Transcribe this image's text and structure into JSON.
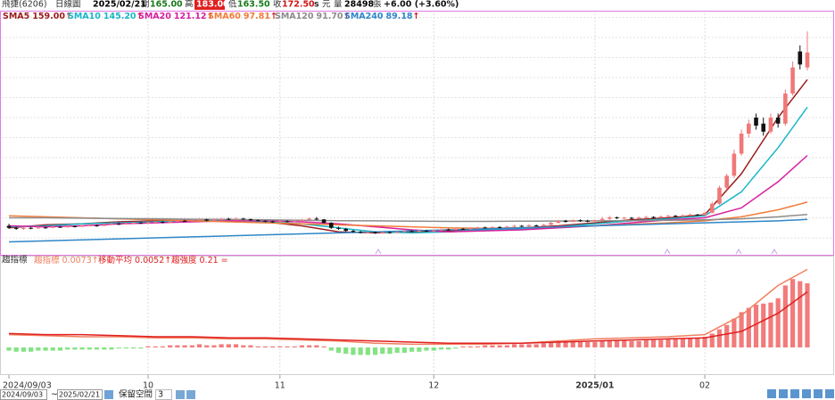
{
  "header": {
    "stock": "飛捷(6206)",
    "view": "日線圖",
    "date": "2025/02/21",
    "open_label": "開",
    "open": "165.00",
    "high_label": "高",
    "high": "183.00",
    "low_label": "低",
    "low": "163.50",
    "close_label": "收",
    "close": "172.50",
    "unit_s": "s",
    "unit_yuan": "元",
    "volume_label": "量",
    "volume": "28498",
    "volume_unit": "張",
    "change": "+6.00 (+3.60%)"
  },
  "toolbar": {
    "range_start": "2024/09/03",
    "range_sep": "~",
    "range_end": "2025/02/21",
    "reserve_label": "保留空間",
    "reserve_value": "3"
  },
  "chart_data": [
    {
      "type": "candlestick",
      "xlim": [
        0,
        109
      ],
      "ylim": [
        72,
        192
      ],
      "xticks": [
        {
          "value": 0,
          "label": "2024/09/03"
        },
        {
          "value": 19,
          "label": "10"
        },
        {
          "value": 37,
          "label": "11"
        },
        {
          "value": 58,
          "label": "12"
        },
        {
          "value": 80,
          "label": "2025/01"
        },
        {
          "value": 95,
          "label": "02"
        }
      ],
      "grid_y": [
        80,
        90,
        100,
        110,
        120,
        130,
        140,
        150,
        160,
        170,
        180,
        190
      ],
      "up_color": "#f07878",
      "down_color": "#111111",
      "open": [
        86,
        85,
        84.5,
        85,
        84.8,
        85.2,
        85,
        85.5,
        85.3,
        85.8,
        85.6,
        86,
        86.2,
        86,
        86.5,
        87,
        86.8,
        87.2,
        87.5,
        87.3,
        87.8,
        88,
        87.6,
        88.2,
        88.5,
        88.3,
        88.8,
        89.2,
        88.6,
        89,
        89.5,
        89.2,
        89.6,
        89.3,
        88.8,
        88.5,
        88.2,
        88,
        88.3,
        88.1,
        88.6,
        89,
        89.6,
        89.2,
        87.5,
        85,
        84.5,
        83.5,
        83,
        82.6,
        82.9,
        82.4,
        82.8,
        82.5,
        83,
        83.4,
        83.1,
        83.6,
        83.3,
        83.8,
        84.2,
        84,
        84.5,
        84.3,
        84.8,
        85.2,
        85,
        85.4,
        85.1,
        85.6,
        86,
        85.8,
        86.2,
        86,
        86.5,
        87.5,
        88.5,
        88,
        88.8,
        88.5,
        88.2,
        88.8,
        89.5,
        90.2,
        89.8,
        90,
        89.6,
        90.1,
        90.4,
        90.1,
        90.6,
        91,
        90.7,
        91.2,
        91.6,
        91.3,
        92.5,
        97,
        105,
        111,
        122,
        132,
        140,
        137,
        133,
        140,
        137,
        152,
        173,
        165
      ],
      "close": [
        85,
        84.5,
        85,
        84.8,
        85.2,
        85,
        85.5,
        85.3,
        85.8,
        85.6,
        86,
        86.2,
        86,
        86.5,
        87,
        86.8,
        87.2,
        87.5,
        87.3,
        87.8,
        88,
        87.6,
        88.2,
        88.5,
        88.3,
        88.8,
        89.2,
        88.6,
        89,
        89.5,
        89.2,
        89.6,
        89.3,
        88.8,
        88.5,
        88.2,
        88,
        88.3,
        88.1,
        88.6,
        89,
        89.6,
        89.2,
        87.5,
        85,
        84.5,
        83.5,
        83,
        82.6,
        82.9,
        82.4,
        82.8,
        82.5,
        83,
        83.4,
        83.1,
        83.6,
        83.3,
        83.8,
        84.2,
        84,
        84.5,
        84.3,
        84.8,
        85.2,
        85,
        85.4,
        85.1,
        85.6,
        86,
        85.8,
        86.2,
        86,
        86.5,
        87.5,
        88.5,
        88,
        88.8,
        88.5,
        88.2,
        88.8,
        89.5,
        90.2,
        89.8,
        90,
        89.6,
        90.1,
        90.4,
        90.1,
        90.6,
        91,
        90.7,
        91.2,
        91.6,
        91.3,
        92.5,
        97,
        105,
        111,
        122,
        132,
        137,
        136,
        133,
        140,
        137,
        152,
        165,
        166.5,
        172.5
      ],
      "high": [
        87,
        85.5,
        85.5,
        85.5,
        85.8,
        85.6,
        86,
        86,
        86.2,
        86.2,
        86.5,
        86.8,
        86.6,
        87,
        87.5,
        87.6,
        87.6,
        88,
        88,
        88.2,
        88.5,
        88.3,
        88.6,
        89,
        89,
        89.2,
        89.8,
        89.5,
        89.4,
        90,
        90,
        90.2,
        90,
        89.6,
        89.2,
        88.8,
        88.6,
        88.8,
        88.8,
        89,
        89.5,
        90.2,
        90.4,
        89.4,
        87.8,
        85.6,
        85,
        84,
        83.5,
        83.3,
        83.2,
        83.2,
        83.2,
        83.4,
        83.8,
        83.8,
        84,
        84,
        84.2,
        84.6,
        84.6,
        85,
        84.9,
        85.2,
        85.6,
        85.6,
        85.8,
        85.8,
        86,
        86.5,
        86.4,
        86.8,
        86.6,
        87,
        88,
        89,
        89,
        89.2,
        89.2,
        89,
        89.2,
        90.5,
        91,
        90.6,
        90.5,
        90.4,
        90.6,
        91,
        90.8,
        91.2,
        91.5,
        91.4,
        91.8,
        92.2,
        92,
        93,
        98,
        106,
        112,
        124,
        134,
        139,
        142,
        140,
        142,
        142,
        154,
        168,
        176,
        183
      ],
      "low": [
        84.5,
        84,
        84,
        84.3,
        84.5,
        84.6,
        84.8,
        85,
        85,
        85.2,
        85.4,
        85.8,
        85.6,
        85.8,
        86.2,
        86.4,
        86.5,
        87,
        87,
        87,
        87.5,
        87.2,
        87.3,
        88,
        88,
        88,
        88.5,
        88.2,
        88.3,
        88.8,
        88.9,
        89,
        89,
        88.5,
        88.2,
        87.8,
        87.6,
        87.7,
        87.8,
        87.9,
        88.3,
        88.8,
        88.9,
        87.2,
        84.5,
        84,
        83,
        82.5,
        82.2,
        82.2,
        82,
        82,
        82.1,
        82.2,
        82.6,
        82.8,
        82.8,
        83,
        83,
        83.5,
        83.6,
        83.8,
        84,
        84,
        84.5,
        84.7,
        84.8,
        84.8,
        84.9,
        85.3,
        85.4,
        85.5,
        85.7,
        85.8,
        86.3,
        87.2,
        87.6,
        87.8,
        88,
        87.8,
        88,
        88.5,
        89,
        89.4,
        89.4,
        89.2,
        89.3,
        89.8,
        89.7,
        89.9,
        90.2,
        90.3,
        90.4,
        90.9,
        91,
        91,
        92.2,
        96.5,
        104,
        110,
        121,
        130,
        134,
        131,
        132,
        135,
        136,
        151,
        164,
        163.5
      ],
      "series": [
        {
          "name": "SMA5",
          "color": "#9b1c1c",
          "x": [
            0,
            5,
            10,
            15,
            20,
            25,
            30,
            35,
            40,
            45,
            50,
            55,
            60,
            65,
            70,
            75,
            80,
            85,
            90,
            95,
            100,
            105,
            109
          ],
          "values": [
            85,
            86.5,
            87,
            88,
            88.5,
            88.7,
            88.2,
            88,
            86,
            83,
            82.5,
            83,
            83.5,
            84.5,
            85,
            86,
            87.5,
            89,
            90,
            91.5,
            112,
            140,
            159
          ],
          "last": {
            "value": 159,
            "label": "159.00"
          },
          "trend": "↑"
        },
        {
          "name": "SMA10",
          "color": "#19b6c9",
          "x": [
            0,
            5,
            10,
            15,
            20,
            25,
            30,
            35,
            40,
            45,
            50,
            55,
            60,
            65,
            70,
            75,
            80,
            85,
            90,
            95,
            100,
            105,
            109
          ],
          "values": [
            85.5,
            86,
            87,
            87.5,
            88,
            88.5,
            88.5,
            88,
            87,
            85,
            83,
            82.5,
            83,
            84,
            84.5,
            85.5,
            87,
            88.5,
            89.5,
            91,
            103,
            125,
            145.2
          ],
          "last": {
            "value": 145.2,
            "label": "145.20"
          },
          "trend": "↑"
        },
        {
          "name": "SMA20",
          "color": "#d6209e",
          "x": [
            0,
            5,
            10,
            15,
            20,
            25,
            30,
            35,
            40,
            45,
            50,
            55,
            60,
            65,
            70,
            75,
            80,
            85,
            90,
            95,
            100,
            105,
            109
          ],
          "values": [
            86,
            85.5,
            86,
            87,
            87.5,
            88,
            88.5,
            88.5,
            88,
            87,
            85.5,
            84,
            83,
            83.5,
            84,
            85,
            86,
            87.5,
            89,
            90,
            95,
            108,
            121.12
          ],
          "last": {
            "value": 121.12,
            "label": "121.12"
          },
          "trend": "↑"
        },
        {
          "name": "SMA60",
          "color": "#f07d3a",
          "x": [
            0,
            5,
            10,
            15,
            20,
            25,
            30,
            35,
            40,
            45,
            50,
            55,
            60,
            65,
            70,
            75,
            80,
            85,
            90,
            95,
            100,
            105,
            109
          ],
          "values": [
            91,
            90.5,
            90,
            89.5,
            89,
            88.5,
            88,
            87.5,
            87,
            86.5,
            86,
            85.5,
            85,
            84.8,
            85,
            85.5,
            86,
            86.8,
            87.5,
            88.5,
            90.5,
            94,
            97.81
          ],
          "last": {
            "value": 97.81,
            "label": "97.81"
          },
          "trend": "↑"
        },
        {
          "name": "SMA120",
          "color": "#8c8c8c",
          "x": [
            0,
            5,
            10,
            15,
            20,
            25,
            30,
            35,
            40,
            45,
            50,
            55,
            60,
            65,
            70,
            75,
            80,
            85,
            90,
            95,
            100,
            105,
            109
          ],
          "values": [
            90,
            90,
            89.8,
            89.6,
            89.5,
            89.3,
            89.2,
            89,
            88.8,
            88.6,
            88.5,
            88.3,
            88.2,
            88.2,
            88.3,
            88.4,
            88.5,
            88.6,
            88.8,
            89,
            89.5,
            90.5,
            91.7
          ],
          "last": {
            "value": 91.7,
            "label": "91.70"
          },
          "trend": "↑"
        },
        {
          "name": "SMA240",
          "color": "#2f86c8",
          "x": [
            0,
            5,
            10,
            15,
            20,
            25,
            30,
            35,
            40,
            45,
            50,
            55,
            60,
            65,
            70,
            75,
            80,
            85,
            90,
            95,
            100,
            105,
            109
          ],
          "values": [
            78,
            78.5,
            79,
            79.5,
            80,
            80.5,
            81,
            81.5,
            82,
            82.5,
            83,
            83.5,
            84,
            84.5,
            85,
            85.5,
            86,
            86.5,
            87,
            87.5,
            88,
            88.5,
            89.18
          ],
          "last": {
            "value": 89.18,
            "label": "89.18"
          },
          "trend": "↑"
        }
      ]
    },
    {
      "type": "indicator",
      "title": "趨指標",
      "xlim": [
        0,
        109
      ],
      "ylim": [
        -0.0025,
        0.0085
      ],
      "bar_up_color": "#f06464",
      "bar_down_color": "#6ede6e",
      "bars": [
        -0.0003,
        -0.0004,
        -0.0004,
        -0.0004,
        -0.0003,
        -0.0003,
        -0.0003,
        -0.0003,
        -0.0002,
        -0.0002,
        -0.0002,
        -0.0002,
        -0.0002,
        -0.0002,
        -0.0002,
        -0.0001,
        -0.0001,
        -0.0001,
        -0.0001,
        0.0001,
        0.0001,
        0.0001,
        0.0002,
        0.0002,
        0.0002,
        0.0002,
        0.0003,
        0.0002,
        0.0002,
        0.0003,
        0.0003,
        0.0003,
        0.0002,
        0.0002,
        0.0001,
        0.0001,
        0.0001,
        0.0001,
        0.0001,
        0.0001,
        0.0002,
        0.0002,
        0.0002,
        0.0001,
        -0.0003,
        -0.0005,
        -0.0006,
        -0.0007,
        -0.0007,
        -0.0007,
        -0.0007,
        -0.0006,
        -0.0006,
        -0.0005,
        -0.0005,
        -0.0004,
        -0.0004,
        -0.0003,
        -0.0003,
        -0.0002,
        -0.0002,
        -0.0001,
        0.0001,
        0.0001,
        0.0001,
        0.0002,
        0.0002,
        0.0002,
        0.0002,
        0.0003,
        0.0003,
        0.0003,
        0.0003,
        0.0004,
        0.0005,
        0.0006,
        0.0006,
        0.0006,
        0.0006,
        0.0005,
        0.0005,
        0.0006,
        0.0007,
        0.0007,
        0.0007,
        0.0006,
        0.0006,
        0.0007,
        0.0007,
        0.0007,
        0.0008,
        0.0008,
        0.0008,
        0.0009,
        0.0009,
        0.001,
        0.0013,
        0.0017,
        0.0021,
        0.0027,
        0.0033,
        0.0037,
        0.004,
        0.0041,
        0.0042,
        0.0046,
        0.0058,
        0.0064,
        0.0062,
        0.006
      ],
      "series": [
        {
          "name": "趨指標",
          "color": "#f08060",
          "x": [
            0,
            5,
            10,
            15,
            20,
            25,
            30,
            35,
            40,
            45,
            50,
            55,
            60,
            65,
            70,
            75,
            80,
            85,
            90,
            95,
            100,
            105,
            109
          ],
          "values": [
            0.0012,
            0.0011,
            0.001,
            0.001,
            0.0009,
            0.0009,
            0.0008,
            0.0008,
            0.0007,
            0.0006,
            0.0004,
            0.0003,
            0.0003,
            0.0003,
            0.0004,
            0.0006,
            0.0008,
            0.0009,
            0.001,
            0.0012,
            0.003,
            0.0058,
            0.0073
          ],
          "last": 0.0073,
          "trend": "↑"
        },
        {
          "name": "移動平均",
          "color": "#e02020",
          "x": [
            0,
            5,
            10,
            15,
            20,
            25,
            30,
            35,
            40,
            45,
            50,
            55,
            60,
            65,
            70,
            75,
            80,
            85,
            90,
            95,
            100,
            105,
            109
          ],
          "values": [
            0.0013,
            0.0012,
            0.0012,
            0.0011,
            0.001,
            0.001,
            0.0009,
            0.0009,
            0.0008,
            0.0007,
            0.0006,
            0.0005,
            0.0004,
            0.0004,
            0.0004,
            0.0005,
            0.0006,
            0.0007,
            0.0008,
            0.0009,
            0.0015,
            0.0032,
            0.0052
          ],
          "last": 0.0052,
          "trend": "↑"
        }
      ],
      "strength": {
        "name": "趨強度",
        "value": 0.21,
        "trend": "="
      }
    }
  ]
}
